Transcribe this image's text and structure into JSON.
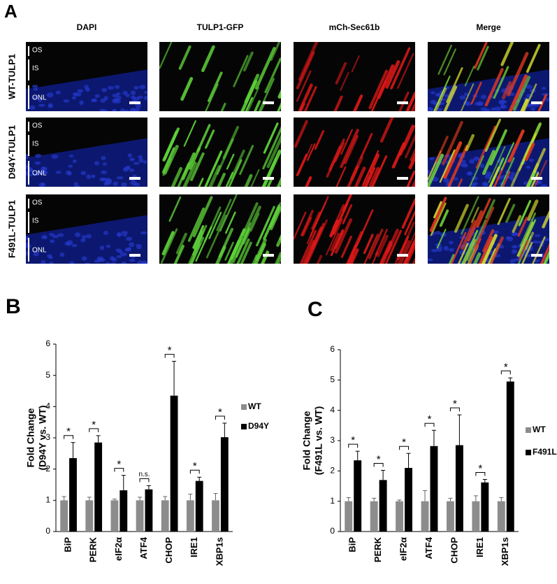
{
  "figure": {
    "panel_a": {
      "letter": "A",
      "columns": [
        "DAPI",
        "TULP1-GFP",
        "mCh-Sec61b",
        "Merge"
      ],
      "rows": [
        "WT-TULP1",
        "D94Y-TULP1",
        "F491L-TULP1"
      ],
      "layers": [
        "OS",
        "IS",
        "ONL"
      ]
    },
    "letters": [
      "B",
      "C"
    ]
  },
  "chart_data": [
    {
      "type": "bar",
      "ylabel": [
        "Fold Change",
        "(D94Y vs. WT)"
      ],
      "categories": [
        "BiP",
        "PERK",
        "eIF2α",
        "ATF4",
        "CHOP",
        "IRE1",
        "XBP1s"
      ],
      "series": [
        {
          "name": "WT",
          "color": "#8c8c8c",
          "values": [
            1,
            1,
            1,
            1,
            1,
            1,
            1
          ],
          "errors": [
            0.12,
            0.1,
            0.04,
            0.1,
            0.12,
            0.2,
            0.22
          ]
        },
        {
          "name": "D94Y",
          "color": "#000000",
          "values": [
            2.35,
            2.85,
            1.32,
            1.35,
            4.35,
            1.62,
            3.02
          ],
          "errors": [
            0.5,
            0.22,
            0.48,
            0.12,
            1.1,
            0.12,
            0.45
          ]
        }
      ],
      "significance": [
        "*",
        "*",
        "*",
        "n.s.",
        "*",
        "*",
        "*"
      ],
      "ylim": [
        0,
        6
      ],
      "yticks": [
        0,
        1,
        2,
        3,
        4,
        5,
        6
      ]
    },
    {
      "type": "bar",
      "ylabel": [
        "Fold Change",
        "(F491L vs. WT)"
      ],
      "categories": [
        "BiP",
        "PERK",
        "eIF2α",
        "ATF4",
        "CHOP",
        "IRE1",
        "XBP1s"
      ],
      "series": [
        {
          "name": "WT",
          "color": "#8c8c8c",
          "values": [
            1,
            1,
            1,
            1,
            1,
            1,
            1
          ],
          "errors": [
            0.12,
            0.1,
            0.04,
            0.35,
            0.1,
            0.18,
            0.12
          ]
        },
        {
          "name": "F491L",
          "color": "#000000",
          "values": [
            2.35,
            1.7,
            2.1,
            2.82,
            2.85,
            1.62,
            4.95
          ],
          "errors": [
            0.3,
            0.32,
            0.48,
            0.52,
            1.0,
            0.1,
            0.12
          ]
        }
      ],
      "significance": [
        "*",
        "*",
        "*",
        "*",
        "*",
        "*",
        "*"
      ],
      "ylim": [
        0,
        6
      ],
      "yticks": [
        0,
        1,
        2,
        3,
        4,
        5,
        6
      ]
    }
  ]
}
